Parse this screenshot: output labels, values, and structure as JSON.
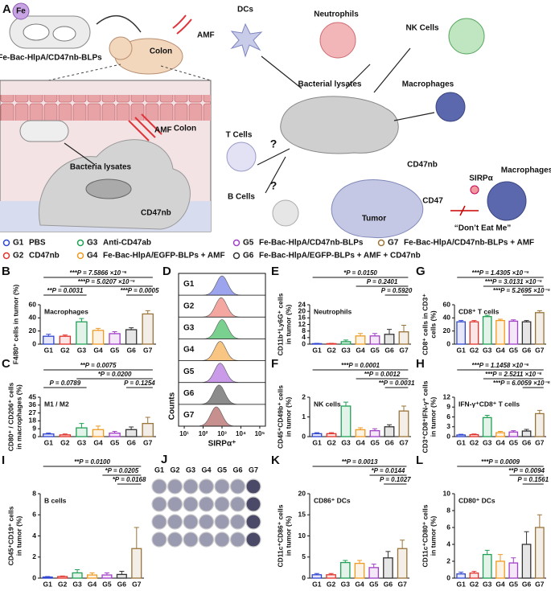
{
  "panel_a": {
    "panel": "A",
    "labels": [
      "Fe",
      "Fe-Bac-HlpA/CD47nb-BLPs",
      "Colon",
      "AMF",
      "AMF",
      "Colon",
      "Bacteria lysates",
      "CD47nb",
      "DCs",
      "Neutrophils",
      "NK Cells",
      "Macrophages",
      "Bacterial lysates",
      "T Cells",
      "B Cells",
      "?",
      "?",
      "CD47nb",
      "SIRPα",
      "Macrophages",
      "CD47",
      "Tumor",
      "“Don’t Eat Me”"
    ]
  },
  "legend": [
    {
      "group": "G1",
      "label": "PBS",
      "color": "#2f45d0"
    },
    {
      "group": "G2",
      "label": "CD47nb",
      "color": "#e0332b"
    },
    {
      "group": "G3",
      "label": "Anti-CD47ab",
      "color": "#1fa055"
    },
    {
      "group": "G4",
      "label": "Fe-Bac-HlpA/EGFP-BLPs + AMF",
      "color": "#f09a22"
    },
    {
      "group": "G5",
      "label": "Fe-Bac-HlpA/CD47nb-BLPs",
      "color": "#a23fc8"
    },
    {
      "group": "G6",
      "label": "Fe-Bac-HlpA/EGFP-BLPs + AMF + CD47nb",
      "color": "#333333"
    },
    {
      "group": "G7",
      "label": "Fe-Bac-HlpA/CD47nb-BLPs + AMF",
      "color": "#9a7438"
    }
  ],
  "histogram_panel": {
    "type": "ridgeline",
    "panel": "D",
    "xlabel": "SIRPα⁺",
    "ylabel": "Counts",
    "log_x": true,
    "xlim": [
      5,
      200000
    ],
    "xticks": [
      {
        "value": 10,
        "label": "10¹"
      },
      {
        "value": 100,
        "label": "10²"
      },
      {
        "value": 1000,
        "label": "10³"
      },
      {
        "value": 10000,
        "label": "10⁴"
      },
      {
        "value": 100000,
        "label": "10⁵"
      }
    ],
    "series": [
      {
        "name": "G1",
        "color": "#7b86e8",
        "peak": 1000
      },
      {
        "name": "G2",
        "color": "#f08a80",
        "peak": 900
      },
      {
        "name": "G3",
        "color": "#4cc06a",
        "peak": 1000
      },
      {
        "name": "G4",
        "color": "#f5b25a",
        "peak": 800
      },
      {
        "name": "G5",
        "color": "#b77ae0",
        "peak": 800
      },
      {
        "name": "G6",
        "color": "#666666",
        "peak": 700
      },
      {
        "name": "G7",
        "color": "#b56a6a",
        "peak": 500
      }
    ]
  },
  "colony_panel": {
    "panel": "J",
    "columns": [
      "G1",
      "G2",
      "G3",
      "G4",
      "G5",
      "G6",
      "G7"
    ]
  },
  "chart_data": [
    {
      "type": "bar",
      "panel": "B",
      "ylabel": [
        "F4/80⁺ cells in tumor (%)"
      ],
      "label": "Macrophages",
      "categories": [
        "G1",
        "G2",
        "G3",
        "G4",
        "G5",
        "G6",
        "G7"
      ],
      "values": [
        12,
        12,
        34,
        21,
        16,
        22,
        46
      ],
      "errors": [
        3,
        2,
        5,
        3,
        3,
        3,
        5
      ],
      "ylim": [
        0,
        60
      ],
      "yticks": [
        0,
        20,
        40,
        60
      ],
      "significance": [
        "***P = 7.5866 ×10⁻⁶",
        "***P = 5.0207 ×10⁻⁵",
        "**P = 0.0031",
        "***P = 0.0005"
      ]
    },
    {
      "type": "bar",
      "panel": "C",
      "ylabel": [
        "CD80⁺ / CD206⁺ cells",
        "in macrophages (%)"
      ],
      "label": "M1 / M2",
      "categories": [
        "G1",
        "G2",
        "G3",
        "G4",
        "G5",
        "G6",
        "G7"
      ],
      "values": [
        3,
        2,
        10,
        8,
        4,
        8,
        15
      ],
      "errors": [
        1,
        1,
        5,
        4,
        2,
        3,
        7
      ],
      "ylim": [
        0,
        45
      ],
      "yticks": [
        0,
        9,
        18,
        27,
        36,
        45
      ],
      "significance": [
        "**P = 0.0075",
        "*P = 0.0200",
        "P = 0.0789",
        "P = 0.1254"
      ]
    },
    {
      "type": "bar",
      "panel": "E",
      "ylabel": [
        "CD11b⁺Ly6G⁺ cells",
        "in tumor (%)"
      ],
      "label": "Neutrophils",
      "categories": [
        "G1",
        "G2",
        "G3",
        "G4",
        "G5",
        "G6",
        "G7"
      ],
      "values": [
        0.3,
        0.3,
        1.5,
        5,
        5,
        6,
        7.5
      ],
      "errors": [
        0.2,
        0.2,
        1,
        1.5,
        1.5,
        3,
        4
      ],
      "ylim": [
        0,
        24
      ],
      "yticks": [
        0,
        4,
        8,
        12,
        16,
        20,
        24
      ],
      "significance": [
        "*P = 0.0150",
        "P = 0.2401",
        "P = 0.5920"
      ]
    },
    {
      "type": "bar",
      "panel": "F",
      "ylabel": [
        "CD45⁺CD49b⁺ cells",
        "in tumor (%)"
      ],
      "label": "NK cells",
      "categories": [
        "G1",
        "G2",
        "G3",
        "G4",
        "G5",
        "G6",
        "G7"
      ],
      "values": [
        0.15,
        0.15,
        1.55,
        0.35,
        0.3,
        0.5,
        1.3
      ],
      "errors": [
        0.05,
        0.05,
        0.2,
        0.1,
        0.1,
        0.1,
        0.25
      ],
      "ylim": [
        0,
        2
      ],
      "yticks": [
        0,
        1,
        2
      ],
      "significance": [
        "***P = 0.0001",
        "**P = 0.0012",
        "**P = 0.0031"
      ]
    },
    {
      "type": "bar",
      "panel": "G",
      "ylabel": [
        "CD8⁺ cells in CD3⁺",
        "cells (%)"
      ],
      "label": "CD8⁺ T cells",
      "categories": [
        "G1",
        "G2",
        "G3",
        "G4",
        "G5",
        "G6",
        "G7"
      ],
      "values": [
        34,
        34,
        42,
        36,
        35,
        34,
        48
      ],
      "errors": [
        2,
        2,
        2,
        2,
        2,
        2,
        3
      ],
      "ylim": [
        0,
        60
      ],
      "yticks": [
        0,
        20,
        40,
        60
      ],
      "significance": [
        "***P = 1.4305 ×10⁻⁵",
        "***P = 3.0131 ×10⁻⁵",
        "***P = 5.2695 ×10⁻⁵"
      ]
    },
    {
      "type": "bar",
      "panel": "H",
      "ylabel": [
        "CD3⁺CD8⁺IFN-γ⁺ cells",
        "in tumor (%)"
      ],
      "label": "IFN-γ⁺CD8⁺ T cells",
      "categories": [
        "G1",
        "G2",
        "G3",
        "G4",
        "G5",
        "G6",
        "G7"
      ],
      "values": [
        0.5,
        0.6,
        5.8,
        1.2,
        1.4,
        1.7,
        7
      ],
      "errors": [
        0.2,
        0.2,
        0.7,
        0.4,
        0.4,
        0.5,
        1
      ],
      "ylim": [
        0,
        12
      ],
      "yticks": [
        0,
        3,
        6,
        9,
        12
      ],
      "significance": [
        "***P = 1.1458 ×10⁻⁶",
        "***P = 2.5211 ×10⁻⁶",
        "***P = 6.0059 ×10⁻⁶"
      ]
    },
    {
      "type": "bar",
      "panel": "I",
      "ylabel": [
        "CD45⁺CD19⁺ cells",
        "in tumor (%)"
      ],
      "label": "B cells",
      "categories": [
        "G1",
        "G2",
        "G3",
        "G4",
        "G5",
        "G6",
        "G7"
      ],
      "values": [
        0.1,
        0.15,
        0.5,
        0.3,
        0.3,
        0.35,
        2.8
      ],
      "errors": [
        0.05,
        0.05,
        0.3,
        0.2,
        0.2,
        0.3,
        2
      ],
      "ylim": [
        0,
        8
      ],
      "yticks": [
        0,
        2,
        4,
        6,
        8
      ],
      "significance": [
        "**P = 0.0100",
        "*P = 0.0205",
        "*P = 0.0168"
      ]
    },
    {
      "type": "bar",
      "panel": "K",
      "ylabel": [
        "CD11c⁺CD86⁺ cells",
        "in tumor (%)"
      ],
      "label": "CD86⁺ DCs",
      "categories": [
        "G1",
        "G2",
        "G3",
        "G4",
        "G5",
        "G6",
        "G7"
      ],
      "values": [
        0.8,
        0.8,
        3.7,
        3.5,
        2.5,
        4.8,
        7
      ],
      "errors": [
        0.3,
        0.3,
        0.5,
        0.7,
        0.8,
        1.5,
        2
      ],
      "ylim": [
        0,
        20
      ],
      "yticks": [
        0,
        5,
        10,
        15,
        20
      ],
      "significance": [
        "**P = 0.0013",
        "*P = 0.0144",
        "P = 0.1027"
      ]
    },
    {
      "type": "bar",
      "panel": "L",
      "ylabel": [
        "CD11c⁺CD80⁺ cells",
        "in tumor (%)"
      ],
      "label": "CD80⁺ DCs",
      "categories": [
        "G1",
        "G2",
        "G3",
        "G4",
        "G5",
        "G6",
        "G7"
      ],
      "values": [
        0.5,
        0.6,
        2.8,
        2,
        1.8,
        4,
        6
      ],
      "errors": [
        0.2,
        0.2,
        0.5,
        0.8,
        0.6,
        1.5,
        1.5
      ],
      "ylim": [
        0,
        10
      ],
      "yticks": [
        0,
        2,
        4,
        6,
        8,
        10
      ],
      "significance": [
        "***P = 0.0009",
        "**P = 0.0094",
        "P = 0.1561"
      ]
    }
  ]
}
